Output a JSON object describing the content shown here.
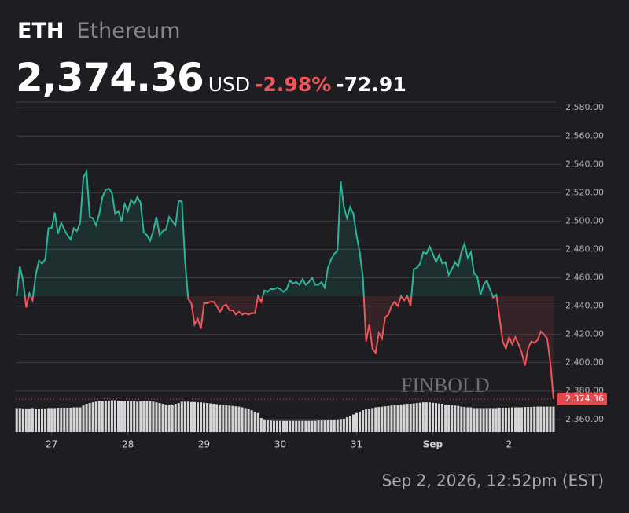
{
  "header": {
    "ticker": "ETH",
    "name": "Ethereum",
    "price": "2,374.36",
    "currency": "USD",
    "change_pct": "-2.98%",
    "change": "-72.91"
  },
  "chart_data": {
    "type": "line",
    "x": [
      -11,
      -10,
      -9,
      -8,
      -7,
      -6,
      -5,
      -4,
      -3,
      -2,
      -1,
      0,
      1,
      2,
      3,
      4,
      5,
      6,
      7,
      8,
      9,
      10,
      11,
      12,
      13,
      14,
      15,
      16,
      17,
      18,
      19,
      20,
      21,
      22,
      23,
      24,
      25,
      26,
      27,
      28,
      29,
      30,
      31,
      32,
      33,
      34,
      35,
      36,
      37,
      38,
      39,
      40,
      41,
      42,
      43,
      44,
      45,
      46,
      47,
      48,
      49,
      50,
      51,
      52,
      53,
      54,
      55,
      56,
      57,
      58,
      59,
      60,
      61,
      62,
      63,
      64,
      65,
      66,
      67,
      68,
      69,
      70,
      71,
      72,
      73,
      74,
      75,
      76,
      77,
      78,
      79,
      80,
      81,
      82,
      83,
      84,
      85,
      86,
      87,
      88,
      89,
      90,
      91,
      92,
      93,
      94,
      95,
      96,
      97,
      98,
      99,
      100,
      101,
      102,
      103,
      104,
      105,
      106,
      107,
      108,
      109,
      110,
      111,
      112,
      113,
      114,
      115,
      116,
      117,
      118,
      119,
      120,
      121,
      122,
      123,
      124,
      125,
      126,
      127,
      128,
      129,
      130,
      131,
      132,
      133,
      134,
      135,
      136,
      137,
      138,
      139,
      140,
      141,
      142,
      143,
      144,
      145,
      146,
      147,
      148,
      149,
      150,
      151,
      152,
      153,
      154,
      155,
      156,
      157,
      158
    ],
    "series": [
      {
        "name": "ETH",
        "color_up": "#2bb59a",
        "color_down": "#f0555a",
        "values": [
          2447,
          2468,
          2458,
          2439,
          2449,
          2444,
          2462,
          2472,
          2470,
          2473,
          2495,
          2495,
          2506,
          2491,
          2499,
          2494,
          2490,
          2487,
          2495,
          2493,
          2499,
          2531,
          2535,
          2503,
          2502,
          2497,
          2505,
          2517,
          2522,
          2523,
          2520,
          2505,
          2507,
          2500,
          2512,
          2507,
          2515,
          2512,
          2517,
          2513,
          2492,
          2490,
          2486,
          2493,
          2503,
          2490,
          2493,
          2494,
          2503,
          2500,
          2497,
          2514,
          2514,
          2472,
          2445,
          2442,
          2427,
          2431,
          2424,
          2442,
          2442,
          2443,
          2443,
          2440,
          2436,
          2440,
          2441,
          2437,
          2437,
          2434,
          2436,
          2434,
          2435,
          2434,
          2435,
          2435,
          2447,
          2443,
          2451,
          2450,
          2452,
          2452,
          2453,
          2452,
          2450,
          2452,
          2458,
          2456,
          2457,
          2455,
          2459,
          2455,
          2457,
          2460,
          2455,
          2455,
          2457,
          2453,
          2467,
          2473,
          2477,
          2479,
          2528,
          2510,
          2502,
          2510,
          2505,
          2490,
          2478,
          2460,
          2415,
          2427,
          2410,
          2407,
          2421,
          2417,
          2432,
          2434,
          2440,
          2443,
          2440,
          2447,
          2444,
          2447,
          2440,
          2466,
          2467,
          2470,
          2478,
          2477,
          2482,
          2477,
          2471,
          2476,
          2470,
          2471,
          2462,
          2466,
          2471,
          2468,
          2478,
          2484,
          2474,
          2478,
          2463,
          2461,
          2448,
          2455,
          2458,
          2452,
          2446,
          2448,
          2432,
          2415,
          2410,
          2418,
          2413,
          2418,
          2413,
          2407,
          2398,
          2410,
          2415,
          2414,
          2416,
          2422,
          2420,
          2417,
          2400,
          2374.36
        ]
      }
    ],
    "volume": [
      68,
      68,
      67,
      67,
      67,
      68,
      66,
      66,
      67,
      67,
      68,
      68,
      68,
      69,
      69,
      69,
      69,
      69,
      70,
      70,
      70,
      75,
      80,
      82,
      84,
      86,
      88,
      88,
      89,
      89,
      90,
      90,
      89,
      88,
      87,
      88,
      87,
      87,
      86,
      87,
      88,
      88,
      87,
      86,
      84,
      82,
      80,
      78,
      76,
      78,
      80,
      82,
      86,
      86,
      86,
      85,
      85,
      84,
      84,
      83,
      82,
      81,
      80,
      79,
      78,
      77,
      76,
      75,
      74,
      73,
      72,
      70,
      68,
      65,
      62,
      58,
      54,
      40,
      36,
      34,
      33,
      32,
      32,
      32,
      32,
      32,
      32,
      32,
      32,
      32,
      32,
      32,
      32,
      32,
      32,
      33,
      33,
      33,
      34,
      34,
      35,
      36,
      37,
      38,
      42,
      46,
      50,
      54,
      58,
      62,
      64,
      66,
      68,
      70,
      71,
      72,
      73,
      74,
      75,
      76,
      77,
      78,
      79,
      80,
      80,
      81,
      82,
      83,
      84,
      84,
      84,
      83,
      82,
      81,
      80,
      78,
      77,
      76,
      75,
      74,
      72,
      71,
      70,
      70,
      68,
      68,
      68,
      68,
      68,
      68,
      68,
      68,
      69,
      69,
      69,
      69,
      70,
      70,
      70,
      70,
      71,
      71,
      71,
      72,
      72,
      72,
      72,
      72,
      72,
      72
    ],
    "vlim": [
      0,
      100
    ],
    "volume_color": "#d6d6d6",
    "xlim": [
      -11.3,
      158.5
    ],
    "xticks": [
      {
        "value": 0,
        "label": "27"
      },
      {
        "value": 24,
        "label": "28"
      },
      {
        "value": 48,
        "label": "29"
      },
      {
        "value": 72,
        "label": "30"
      },
      {
        "value": 96,
        "label": "31"
      },
      {
        "value": 120,
        "label": "Sep"
      },
      {
        "value": 144,
        "label": "2"
      }
    ],
    "ylim": [
      2351,
      2584
    ],
    "yticks": [
      {
        "value": 2360,
        "label": "2,360.00"
      },
      {
        "value": 2380,
        "label": "2,380.00"
      },
      {
        "value": 2400,
        "label": "2,400.00"
      },
      {
        "value": 2420,
        "label": "2,420.00"
      },
      {
        "value": 2440,
        "label": "2,440.00"
      },
      {
        "value": 2460,
        "label": "2,460.00"
      },
      {
        "value": 2480,
        "label": "2,480.00"
      },
      {
        "value": 2500,
        "label": "2,500.00"
      },
      {
        "value": 2520,
        "label": "2,520.00"
      },
      {
        "value": 2540,
        "label": "2,540.00"
      },
      {
        "value": 2560,
        "label": "2,560.00"
      },
      {
        "value": 2580,
        "label": "2,580.00"
      }
    ],
    "grid": true,
    "last_label": "2,374.36",
    "watermark": "FINBOLD",
    "timestamp": "Sep 2, 2026, 12:52pm (EST)"
  }
}
